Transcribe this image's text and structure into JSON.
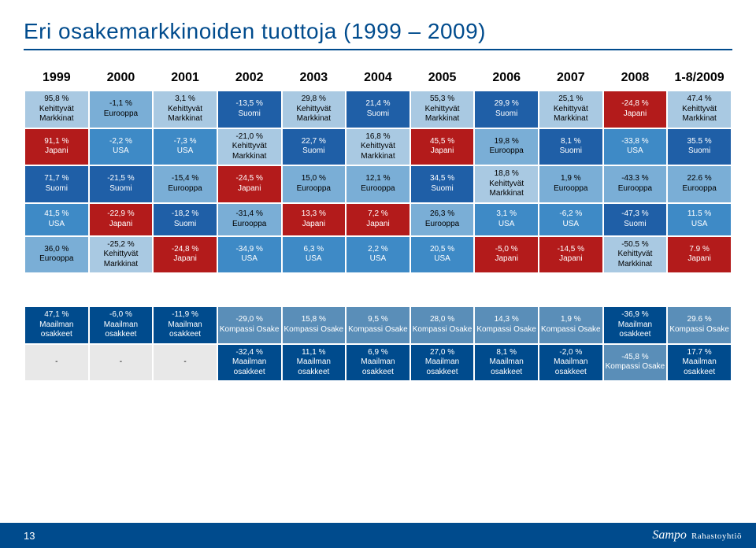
{
  "title": "Eri osakemarkkinoiden tuottoja (1999 – 2009)",
  "page_number": "13",
  "logo_brand": "Sampo",
  "logo_sub": "Rahastoyhtiö",
  "colors": {
    "japani": "#b31b1b",
    "suomi": "#1f5fa7",
    "usa": "#3e8ac6",
    "eurooppa": "#7aaed6",
    "kehittyvat": "#a9c9e2",
    "maailman": "#004b8d",
    "kompassi": "#5a8eb8",
    "blank": "#e8e8e8",
    "black_text": "#000000"
  },
  "years": [
    "1999",
    "2000",
    "2001",
    "2002",
    "2003",
    "2004",
    "2005",
    "2006",
    "2007",
    "2008",
    "1-8/2009"
  ],
  "rows_top": [
    [
      {
        "v": "95,8 %",
        "l": "Kehittyvät Markkinat",
        "c": "kehittyvat",
        "tc": "black"
      },
      {
        "v": "-1,1 %",
        "l": "Eurooppa",
        "c": "eurooppa",
        "tc": "black"
      },
      {
        "v": "3,1 %",
        "l": "Kehittyvät Markkinat",
        "c": "kehittyvat",
        "tc": "black"
      },
      {
        "v": "-13,5 %",
        "l": "Suomi",
        "c": "suomi"
      },
      {
        "v": "29,8 %",
        "l": "Kehittyvät Markkinat",
        "c": "kehittyvat",
        "tc": "black"
      },
      {
        "v": "21,4 %",
        "l": "Suomi",
        "c": "suomi"
      },
      {
        "v": "55,3 %",
        "l": "Kehittyvät Markkinat",
        "c": "kehittyvat",
        "tc": "black"
      },
      {
        "v": "29,9 %",
        "l": "Suomi",
        "c": "suomi"
      },
      {
        "v": "25,1 %",
        "l": "Kehittyvät Markkinat",
        "c": "kehittyvat",
        "tc": "black"
      },
      {
        "v": "-24,8 %",
        "l": "Japani",
        "c": "japani"
      },
      {
        "v": "47.4 %",
        "l": "Kehittyvät Markkinat",
        "c": "kehittyvat",
        "tc": "black"
      }
    ],
    [
      {
        "v": "91,1 %",
        "l": "Japani",
        "c": "japani"
      },
      {
        "v": "-2,2 %",
        "l": "USA",
        "c": "usa"
      },
      {
        "v": "-7,3 %",
        "l": "USA",
        "c": "usa"
      },
      {
        "v": "-21,0 %",
        "l": "Kehittyvät Markkinat",
        "c": "kehittyvat",
        "tc": "black"
      },
      {
        "v": "22,7 %",
        "l": "Suomi",
        "c": "suomi"
      },
      {
        "v": "16,8 %",
        "l": "Kehittyvät Markkinat",
        "c": "kehittyvat",
        "tc": "black"
      },
      {
        "v": "45,5 %",
        "l": "Japani",
        "c": "japani"
      },
      {
        "v": "19,8 %",
        "l": "Eurooppa",
        "c": "eurooppa",
        "tc": "black"
      },
      {
        "v": "8,1 %",
        "l": "Suomi",
        "c": "suomi"
      },
      {
        "v": "-33,8 %",
        "l": "USA",
        "c": "usa"
      },
      {
        "v": "35.5 %",
        "l": "Suomi",
        "c": "suomi"
      }
    ],
    [
      {
        "v": "71,7 %",
        "l": "Suomi",
        "c": "suomi"
      },
      {
        "v": "-21,5 %",
        "l": "Suomi",
        "c": "suomi"
      },
      {
        "v": "-15,4 %",
        "l": "Eurooppa",
        "c": "eurooppa",
        "tc": "black"
      },
      {
        "v": "-24,5 %",
        "l": "Japani",
        "c": "japani"
      },
      {
        "v": "15,0 %",
        "l": "Eurooppa",
        "c": "eurooppa",
        "tc": "black"
      },
      {
        "v": "12,1 %",
        "l": "Eurooppa",
        "c": "eurooppa",
        "tc": "black"
      },
      {
        "v": "34,5 %",
        "l": "Suomi",
        "c": "suomi"
      },
      {
        "v": "18,8 %",
        "l": "Kehittyvät Markkinat",
        "c": "kehittyvat",
        "tc": "black"
      },
      {
        "v": "1,9 %",
        "l": "Eurooppa",
        "c": "eurooppa",
        "tc": "black"
      },
      {
        "v": "-43.3 %",
        "l": "Eurooppa",
        "c": "eurooppa",
        "tc": "black"
      },
      {
        "v": "22.6 %",
        "l": "Eurooppa",
        "c": "eurooppa",
        "tc": "black"
      }
    ],
    [
      {
        "v": "41,5 %",
        "l": "USA",
        "c": "usa"
      },
      {
        "v": "-22,9 %",
        "l": "Japani",
        "c": "japani"
      },
      {
        "v": "-18,2 %",
        "l": "Suomi",
        "c": "suomi"
      },
      {
        "v": "-31,4 %",
        "l": "Eurooppa",
        "c": "eurooppa",
        "tc": "black"
      },
      {
        "v": "13,3 %",
        "l": "Japani",
        "c": "japani"
      },
      {
        "v": "7,2 %",
        "l": "Japani",
        "c": "japani"
      },
      {
        "v": "26,3 %",
        "l": "Eurooppa",
        "c": "eurooppa",
        "tc": "black"
      },
      {
        "v": "3,1 %",
        "l": "USA",
        "c": "usa"
      },
      {
        "v": "-6,2 %",
        "l": "USA",
        "c": "usa"
      },
      {
        "v": "-47,3 %",
        "l": "Suomi",
        "c": "suomi"
      },
      {
        "v": "11.5 %",
        "l": "USA",
        "c": "usa"
      }
    ],
    [
      {
        "v": "36,0 %",
        "l": "Eurooppa",
        "c": "eurooppa",
        "tc": "black"
      },
      {
        "v": "-25,2 %",
        "l": "Kehittyvät Markkinat",
        "c": "kehittyvat",
        "tc": "black"
      },
      {
        "v": "-24,8 %",
        "l": "Japani",
        "c": "japani"
      },
      {
        "v": "-34,9 %",
        "l": "USA",
        "c": "usa"
      },
      {
        "v": "6,3 %",
        "l": "USA",
        "c": "usa"
      },
      {
        "v": "2,2 %",
        "l": "USA",
        "c": "usa"
      },
      {
        "v": "20,5 %",
        "l": "USA",
        "c": "usa"
      },
      {
        "v": "-5,0 %",
        "l": "Japani",
        "c": "japani"
      },
      {
        "v": "-14,5 %",
        "l": "Japani",
        "c": "japani"
      },
      {
        "v": "-50.5 %",
        "l": "Kehittyvät Markkinat",
        "c": "kehittyvat",
        "tc": "black"
      },
      {
        "v": "7.9 %",
        "l": "Japani",
        "c": "japani"
      }
    ]
  ],
  "rows_bottom": [
    [
      {
        "v": "47,1 %",
        "l": "Maailman osakkeet",
        "c": "maailman"
      },
      {
        "v": "-6,0 %",
        "l": "Maailman osakkeet",
        "c": "maailman"
      },
      {
        "v": "-11,9 %",
        "l": "Maailman osakkeet",
        "c": "maailman"
      },
      {
        "v": "-29,0 %",
        "l": "Kompassi Osake",
        "c": "kompassi"
      },
      {
        "v": "15,8 %",
        "l": "Kompassi Osake",
        "c": "kompassi"
      },
      {
        "v": "9,5 %",
        "l": "Kompassi Osake",
        "c": "kompassi"
      },
      {
        "v": "28,0 %",
        "l": "Kompassi Osake",
        "c": "kompassi"
      },
      {
        "v": "14,3 %",
        "l": "Kompassi Osake",
        "c": "kompassi"
      },
      {
        "v": "1,9 %",
        "l": "Kompassi Osake",
        "c": "kompassi"
      },
      {
        "v": "-36,9 %",
        "l": "Maailman osakkeet",
        "c": "maailman"
      },
      {
        "v": "29.6 %",
        "l": "Kompassi Osake",
        "c": "kompassi"
      }
    ],
    [
      {
        "v": "-",
        "l": "",
        "c": "blank",
        "tc": "black"
      },
      {
        "v": "-",
        "l": "",
        "c": "blank",
        "tc": "black"
      },
      {
        "v": "-",
        "l": "",
        "c": "blank",
        "tc": "black"
      },
      {
        "v": "-32,4 %",
        "l": "Maailman osakkeet",
        "c": "maailman"
      },
      {
        "v": "11,1 %",
        "l": "Maailman osakkeet",
        "c": "maailman"
      },
      {
        "v": "6,9 %",
        "l": "Maailman osakkeet",
        "c": "maailman"
      },
      {
        "v": "27,0 %",
        "l": "Maailman osakkeet",
        "c": "maailman"
      },
      {
        "v": "8,1 %",
        "l": "Maailman osakkeet",
        "c": "maailman"
      },
      {
        "v": "-2,0 %",
        "l": "Maailman osakkeet",
        "c": "maailman"
      },
      {
        "v": "-45,8 %",
        "l": "Kompassi Osake",
        "c": "kompassi"
      },
      {
        "v": "17.7 %",
        "l": "Maailman osakkeet",
        "c": "maailman"
      }
    ]
  ]
}
